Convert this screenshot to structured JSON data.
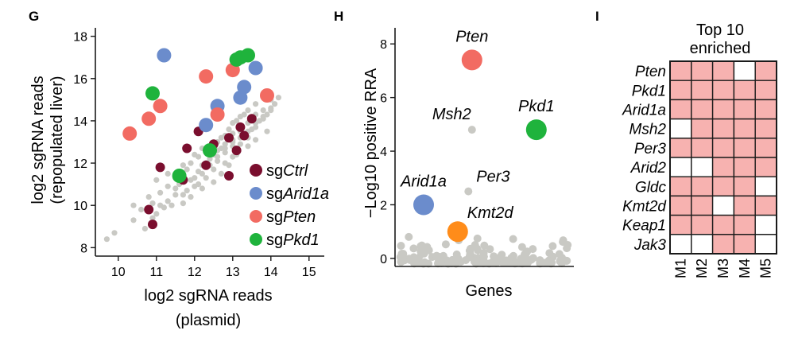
{
  "panels": {
    "G": {
      "letter": "G",
      "chart_data": {
        "type": "scatter",
        "xlabel_lines": [
          "log2 sgRNA reads",
          "(plasmid)"
        ],
        "ylabel_lines": [
          "log2 sgRNA reads",
          "(repopulated liver)"
        ],
        "xlim": [
          9.4,
          15.4
        ],
        "ylim": [
          7.6,
          18.4
        ],
        "xticks": [
          10,
          11,
          12,
          13,
          14,
          15
        ],
        "yticks": [
          8,
          10,
          12,
          14,
          16,
          18
        ],
        "legend_placement": "bottom-right",
        "legend": [
          {
            "prefix": "sg",
            "gene": "Ctrl",
            "color": "#7a0e2e"
          },
          {
            "prefix": "sg",
            "gene": "Arid1a",
            "color": "#6b8ccc"
          },
          {
            "prefix": "sg",
            "gene": "Pten",
            "color": "#f26b62"
          },
          {
            "prefix": "sg",
            "gene": "Pkd1",
            "color": "#1fb33c"
          }
        ],
        "background_color": "#c9c9c4",
        "background_points": [
          [
            9.7,
            8.4
          ],
          [
            9.9,
            8.7
          ],
          [
            10.4,
            9.3
          ],
          [
            10.7,
            8.9
          ],
          [
            10.4,
            10.0
          ],
          [
            10.8,
            10.4
          ],
          [
            11.0,
            9.6
          ],
          [
            11.1,
            10.6
          ],
          [
            11.3,
            10.2
          ],
          [
            11.6,
            11.0
          ],
          [
            11.4,
            10.0
          ],
          [
            11.7,
            10.5
          ],
          [
            11.9,
            11.2
          ],
          [
            12.1,
            11.6
          ],
          [
            12.1,
            11.0
          ],
          [
            12.3,
            12.0
          ],
          [
            12.3,
            11.3
          ],
          [
            12.5,
            12.4
          ],
          [
            12.5,
            11.7
          ],
          [
            12.7,
            12.7
          ],
          [
            12.6,
            12.1
          ],
          [
            12.9,
            13.1
          ],
          [
            12.8,
            12.5
          ],
          [
            13.0,
            13.4
          ],
          [
            13.0,
            12.8
          ],
          [
            13.2,
            13.7
          ],
          [
            13.3,
            13.3
          ],
          [
            13.5,
            14.0
          ],
          [
            13.6,
            13.7
          ],
          [
            13.8,
            14.5
          ],
          [
            13.8,
            14.1
          ],
          [
            14.0,
            15.0
          ],
          [
            14.0,
            14.5
          ],
          [
            11.0,
            11.2
          ],
          [
            11.3,
            11.5
          ],
          [
            11.5,
            10.8
          ],
          [
            11.8,
            11.7
          ],
          [
            12.0,
            12.4
          ],
          [
            12.2,
            12.7
          ],
          [
            12.4,
            12.8
          ],
          [
            12.6,
            13.0
          ],
          [
            12.8,
            13.3
          ],
          [
            13.0,
            13.9
          ],
          [
            13.2,
            14.2
          ],
          [
            13.4,
            14.5
          ],
          [
            13.6,
            14.8
          ],
          [
            11.9,
            10.4
          ],
          [
            12.2,
            10.8
          ],
          [
            12.5,
            11.1
          ],
          [
            12.7,
            11.5
          ],
          [
            12.9,
            11.9
          ],
          [
            13.1,
            12.4
          ],
          [
            13.4,
            12.8
          ],
          [
            13.6,
            13.1
          ],
          [
            13.9,
            13.5
          ],
          [
            10.6,
            9.8
          ],
          [
            10.9,
            10.1
          ],
          [
            11.2,
            9.9
          ],
          [
            11.5,
            10.5
          ],
          [
            11.7,
            10.1
          ],
          [
            12.0,
            10.9
          ],
          [
            12.8,
            12.0
          ],
          [
            13.0,
            12.3
          ],
          [
            13.2,
            12.9
          ],
          [
            13.4,
            13.2
          ],
          [
            13.5,
            13.6
          ],
          [
            13.7,
            14.0
          ],
          [
            13.9,
            14.3
          ],
          [
            14.1,
            14.8
          ],
          [
            12.2,
            11.9
          ],
          [
            12.4,
            12.2
          ],
          [
            12.6,
            12.6
          ],
          [
            12.8,
            12.9
          ],
          [
            13.0,
            13.1
          ],
          [
            13.2,
            13.5
          ],
          [
            13.4,
            13.9
          ],
          [
            13.6,
            14.3
          ],
          [
            11.5,
            11.3
          ],
          [
            11.7,
            11.9
          ],
          [
            11.9,
            12.0
          ],
          [
            12.1,
            12.3
          ],
          [
            12.3,
            12.5
          ],
          [
            12.5,
            12.9
          ],
          [
            12.7,
            13.2
          ],
          [
            12.9,
            13.6
          ],
          [
            13.1,
            14.0
          ],
          [
            13.3,
            14.3
          ],
          [
            10.9,
            9.4
          ],
          [
            11.1,
            10.0
          ],
          [
            11.3,
            10.9
          ],
          [
            11.8,
            10.7
          ],
          [
            12.0,
            11.3
          ],
          [
            12.2,
            11.5
          ],
          [
            12.4,
            11.9
          ],
          [
            12.6,
            12.3
          ],
          [
            12.8,
            12.7
          ],
          [
            13.0,
            13.0
          ],
          [
            13.2,
            13.2
          ],
          [
            13.4,
            13.5
          ],
          [
            13.6,
            13.9
          ],
          [
            13.8,
            14.2
          ],
          [
            14.0,
            14.6
          ],
          [
            14.2,
            15.1
          ]
        ],
        "series": [
          {
            "name": "sgCtrl",
            "color": "#7a0e2e",
            "points": [
              [
                10.8,
                9.8
              ],
              [
                10.9,
                9.1
              ],
              [
                11.1,
                11.8
              ],
              [
                11.6,
                11.4
              ],
              [
                11.7,
                11.2
              ],
              [
                11.8,
                12.7
              ],
              [
                12.1,
                13.5
              ],
              [
                12.3,
                11.9
              ],
              [
                12.5,
                12.9
              ],
              [
                12.9,
                11.4
              ],
              [
                12.9,
                13.2
              ],
              [
                13.1,
                12.6
              ],
              [
                13.2,
                13.7
              ],
              [
                13.3,
                13.3
              ],
              [
                13.5,
                14.1
              ]
            ]
          },
          {
            "name": "sgArid1a",
            "color": "#6b8ccc",
            "points": [
              [
                11.2,
                17.1
              ],
              [
                12.3,
                13.8
              ],
              [
                12.6,
                14.7
              ],
              [
                13.2,
                15.1
              ],
              [
                13.3,
                15.6
              ],
              [
                13.6,
                16.5
              ]
            ]
          },
          {
            "name": "sgPten",
            "color": "#f26b62",
            "points": [
              [
                10.3,
                13.4
              ],
              [
                10.8,
                14.1
              ],
              [
                11.1,
                14.7
              ],
              [
                12.3,
                16.1
              ],
              [
                12.6,
                14.3
              ],
              [
                13.0,
                16.4
              ],
              [
                13.9,
                15.2
              ]
            ]
          },
          {
            "name": "sgPkd1",
            "color": "#1fb33c",
            "points": [
              [
                10.9,
                15.3
              ],
              [
                11.6,
                11.4
              ],
              [
                12.4,
                12.6
              ],
              [
                13.1,
                16.9
              ],
              [
                13.2,
                17.0
              ],
              [
                13.4,
                17.1
              ]
            ]
          }
        ]
      }
    },
    "H": {
      "letter": "H",
      "chart_data": {
        "type": "scatter",
        "xlabel": "Genes",
        "ylabel": "−Log10 positive RRA",
        "ylim": [
          -0.3,
          8.6
        ],
        "yticks": [
          0,
          2,
          4,
          6,
          8
        ],
        "x_axis_ticks": false,
        "background_color": "#c9c9c4",
        "highlighted": [
          {
            "gene": "Pten",
            "x": 0.43,
            "y": 7.4,
            "color": "#f26b62",
            "size": "large",
            "label_side": "above"
          },
          {
            "gene": "Pkd1",
            "x": 0.79,
            "y": 4.8,
            "color": "#1fb33c",
            "size": "large",
            "label_side": "above"
          },
          {
            "gene": "Msh2",
            "x": 0.43,
            "y": 4.8,
            "color": "#c9c9c4",
            "size": "small",
            "label_side": "above-left"
          },
          {
            "gene": "Per3",
            "x": 0.41,
            "y": 2.5,
            "color": "#c9c9c4",
            "size": "small",
            "label_side": "above-right"
          },
          {
            "gene": "Arid1a",
            "x": 0.16,
            "y": 2.0,
            "color": "#6b8ccc",
            "size": "large",
            "label_side": "above"
          },
          {
            "gene": "Kmt2d",
            "x": 0.35,
            "y": 1.0,
            "color": "#ff8c1a",
            "size": "large",
            "label_side": "above-right"
          }
        ]
      }
    },
    "I": {
      "letter": "I",
      "chart_data": {
        "type": "heatmap",
        "title_lines": [
          "Top 10",
          "enriched"
        ],
        "rows": [
          "Pten",
          "Pkd1",
          "Arid1a",
          "Msh2",
          "Per3",
          "Arid2",
          "Gldc",
          "Kmt2d",
          "Keap1",
          "Jak3"
        ],
        "columns": [
          "M1",
          "M2",
          "M3",
          "M4",
          "M5"
        ],
        "enriched_color": "#f7b2b0",
        "not_enriched_color": "#ffffff",
        "values": [
          [
            1,
            1,
            1,
            0,
            1
          ],
          [
            1,
            1,
            1,
            1,
            1
          ],
          [
            1,
            1,
            1,
            1,
            1
          ],
          [
            0,
            1,
            1,
            1,
            1
          ],
          [
            1,
            1,
            1,
            1,
            1
          ],
          [
            0,
            0,
            1,
            1,
            1
          ],
          [
            1,
            1,
            1,
            1,
            0
          ],
          [
            1,
            1,
            0,
            1,
            1
          ],
          [
            1,
            1,
            1,
            1,
            0
          ],
          [
            0,
            0,
            1,
            1,
            0
          ]
        ]
      }
    }
  }
}
